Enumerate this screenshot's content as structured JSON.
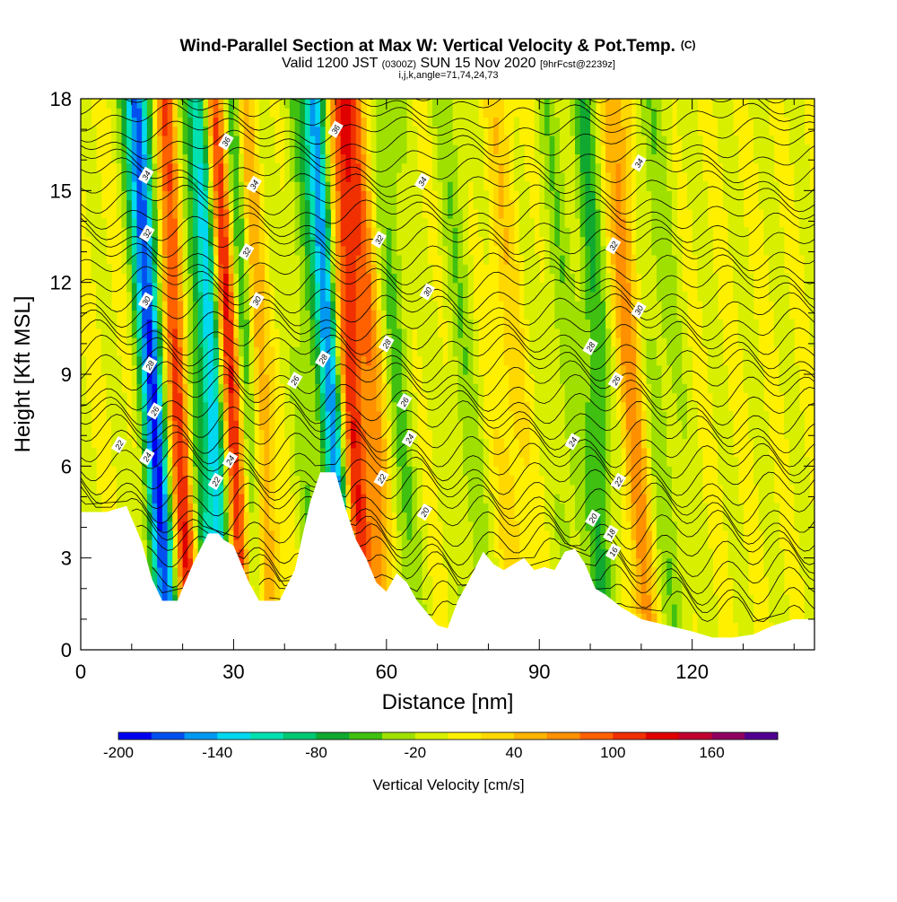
{
  "chart_data": {
    "type": "heatmap",
    "title": "Wind-Parallel Section at Max W: Vertical Velocity & Pot.Temp.",
    "title_suffix": "(C)",
    "subtitle_parts": [
      "Valid 1200 JST ",
      "(0300Z)",
      " SUN 15 Nov 2020 ",
      "[9hrFcst@2239z]"
    ],
    "subtitle2": "i,j,k,angle=71,74,24,73",
    "xlabel": "Distance [nm]",
    "ylabel": "Height [Kft MSL]",
    "xlim": [
      0,
      144
    ],
    "ylim": [
      0,
      18
    ],
    "x_ticks": [
      0,
      30,
      60,
      90,
      120
    ],
    "y_ticks": [
      0,
      3,
      6,
      9,
      12,
      15,
      18
    ],
    "colorbar": {
      "label": "Vertical Velocity [cm/s]",
      "min": -200,
      "max": 200,
      "step": 20,
      "tick_labels": [
        "-200",
        "-140",
        "-80",
        "-20",
        "40",
        "100",
        "160"
      ],
      "colors": [
        "#0000f0",
        "#0050f0",
        "#0098f0",
        "#00d8f0",
        "#00e0b0",
        "#00c870",
        "#10a830",
        "#40c010",
        "#a0e000",
        "#d8f000",
        "#fff000",
        "#ffd800",
        "#ffb400",
        "#ff9000",
        "#ff6000",
        "#f03000",
        "#e00000",
        "#c00030",
        "#900060",
        "#500090"
      ]
    },
    "vertical_velocity_features": [
      {
        "x": 14,
        "value": -180,
        "width": 2.5
      },
      {
        "x": 19,
        "value": 120,
        "width": 2.5
      },
      {
        "x": 22,
        "value": -60,
        "width": 2
      },
      {
        "x": 26,
        "value": -160,
        "width": 2.5
      },
      {
        "x": 29,
        "value": 160,
        "width": 2.5
      },
      {
        "x": 32,
        "value": -80,
        "width": 2
      },
      {
        "x": 35,
        "value": 60,
        "width": 2
      },
      {
        "x": 45,
        "value": -40,
        "width": 3
      },
      {
        "x": 49,
        "value": -150,
        "width": 2
      },
      {
        "x": 53,
        "value": 110,
        "width": 2.5
      },
      {
        "x": 57,
        "value": 70,
        "width": 2.5
      },
      {
        "x": 62,
        "value": -40,
        "width": 3
      },
      {
        "x": 75,
        "value": -30,
        "width": 3
      },
      {
        "x": 84,
        "value": 30,
        "width": 3
      },
      {
        "x": 95,
        "value": -30,
        "width": 3
      },
      {
        "x": 101,
        "value": -60,
        "width": 2.5
      },
      {
        "x": 108,
        "value": 70,
        "width": 2.5
      },
      {
        "x": 114,
        "value": -30,
        "width": 4
      }
    ],
    "terrain_profile": [
      [
        0,
        4.5
      ],
      [
        5,
        4.5
      ],
      [
        9,
        4.7
      ],
      [
        12,
        3.5
      ],
      [
        14,
        2.3
      ],
      [
        16,
        1.6
      ],
      [
        19,
        1.6
      ],
      [
        22,
        2.8
      ],
      [
        25,
        3.8
      ],
      [
        27,
        3.8
      ],
      [
        28,
        3.6
      ],
      [
        30,
        3.4
      ],
      [
        33,
        2.2
      ],
      [
        35,
        1.6
      ],
      [
        39,
        1.6
      ],
      [
        42,
        2.6
      ],
      [
        45,
        4.8
      ],
      [
        47,
        5.8
      ],
      [
        50,
        5.8
      ],
      [
        52,
        4.6
      ],
      [
        54,
        3.6
      ],
      [
        56,
        3.0
      ],
      [
        58,
        2.2
      ],
      [
        60,
        1.9
      ],
      [
        62,
        2.5
      ],
      [
        64,
        2.2
      ],
      [
        66,
        1.6
      ],
      [
        70,
        0.8
      ],
      [
        72,
        0.7
      ],
      [
        74,
        1.6
      ],
      [
        76,
        2.2
      ],
      [
        79,
        3.2
      ],
      [
        81,
        2.8
      ],
      [
        83,
        2.6
      ],
      [
        85,
        2.8
      ],
      [
        87,
        3.0
      ],
      [
        89,
        2.6
      ],
      [
        91,
        2.7
      ],
      [
        93,
        2.6
      ],
      [
        95,
        3.2
      ],
      [
        97,
        3.3
      ],
      [
        99,
        2.8
      ],
      [
        101,
        2.0
      ],
      [
        103,
        1.8
      ],
      [
        106,
        1.4
      ],
      [
        110,
        1.0
      ],
      [
        120,
        0.6
      ],
      [
        124,
        0.4
      ],
      [
        128,
        0.4
      ],
      [
        132,
        0.5
      ],
      [
        136,
        0.8
      ],
      [
        140,
        1.0
      ],
      [
        144,
        1.0
      ]
    ],
    "theta_levels": [
      16,
      18,
      20,
      22,
      24,
      26,
      28,
      30,
      32,
      34,
      36
    ],
    "theta_labels": [
      {
        "x": 7.5,
        "y": 6.7,
        "text": "22"
      },
      {
        "x": 13,
        "y": 6.3,
        "text": "24"
      },
      {
        "x": 14.5,
        "y": 7.8,
        "text": "26"
      },
      {
        "x": 13.5,
        "y": 9.3,
        "text": "28"
      },
      {
        "x": 12.8,
        "y": 11.4,
        "text": "30"
      },
      {
        "x": 13,
        "y": 13.6,
        "text": "32"
      },
      {
        "x": 12.8,
        "y": 15.5,
        "text": "34"
      },
      {
        "x": 26.5,
        "y": 5.5,
        "text": "22"
      },
      {
        "x": 29.3,
        "y": 6.2,
        "text": "24"
      },
      {
        "x": 32.5,
        "y": 13,
        "text": "32"
      },
      {
        "x": 34,
        "y": 15.2,
        "text": "34"
      },
      {
        "x": 28.5,
        "y": 16.6,
        "text": "36"
      },
      {
        "x": 34.5,
        "y": 11.4,
        "text": "30"
      },
      {
        "x": 42,
        "y": 8.8,
        "text": "26"
      },
      {
        "x": 47.5,
        "y": 9.5,
        "text": "28"
      },
      {
        "x": 50,
        "y": 17,
        "text": "36"
      },
      {
        "x": 60,
        "y": 10,
        "text": "28"
      },
      {
        "x": 58.5,
        "y": 13.4,
        "text": "32"
      },
      {
        "x": 59,
        "y": 5.6,
        "text": "22"
      },
      {
        "x": 63.5,
        "y": 8.1,
        "text": "26"
      },
      {
        "x": 64.5,
        "y": 6.9,
        "text": "24"
      },
      {
        "x": 67.5,
        "y": 4.5,
        "text": "20"
      },
      {
        "x": 68,
        "y": 11.7,
        "text": "30"
      },
      {
        "x": 67,
        "y": 15.3,
        "text": "34"
      },
      {
        "x": 96.5,
        "y": 6.8,
        "text": "24"
      },
      {
        "x": 100,
        "y": 9.9,
        "text": "28"
      },
      {
        "x": 100.5,
        "y": 4.3,
        "text": "20"
      },
      {
        "x": 104,
        "y": 3.8,
        "text": "18"
      },
      {
        "x": 104.5,
        "y": 3.2,
        "text": "16"
      },
      {
        "x": 105.5,
        "y": 5.5,
        "text": "22"
      },
      {
        "x": 105,
        "y": 8.8,
        "text": "26"
      },
      {
        "x": 104.5,
        "y": 13.2,
        "text": "32"
      },
      {
        "x": 109.5,
        "y": 15.9,
        "text": "34"
      },
      {
        "x": 109.5,
        "y": 11.1,
        "text": "30"
      }
    ]
  }
}
